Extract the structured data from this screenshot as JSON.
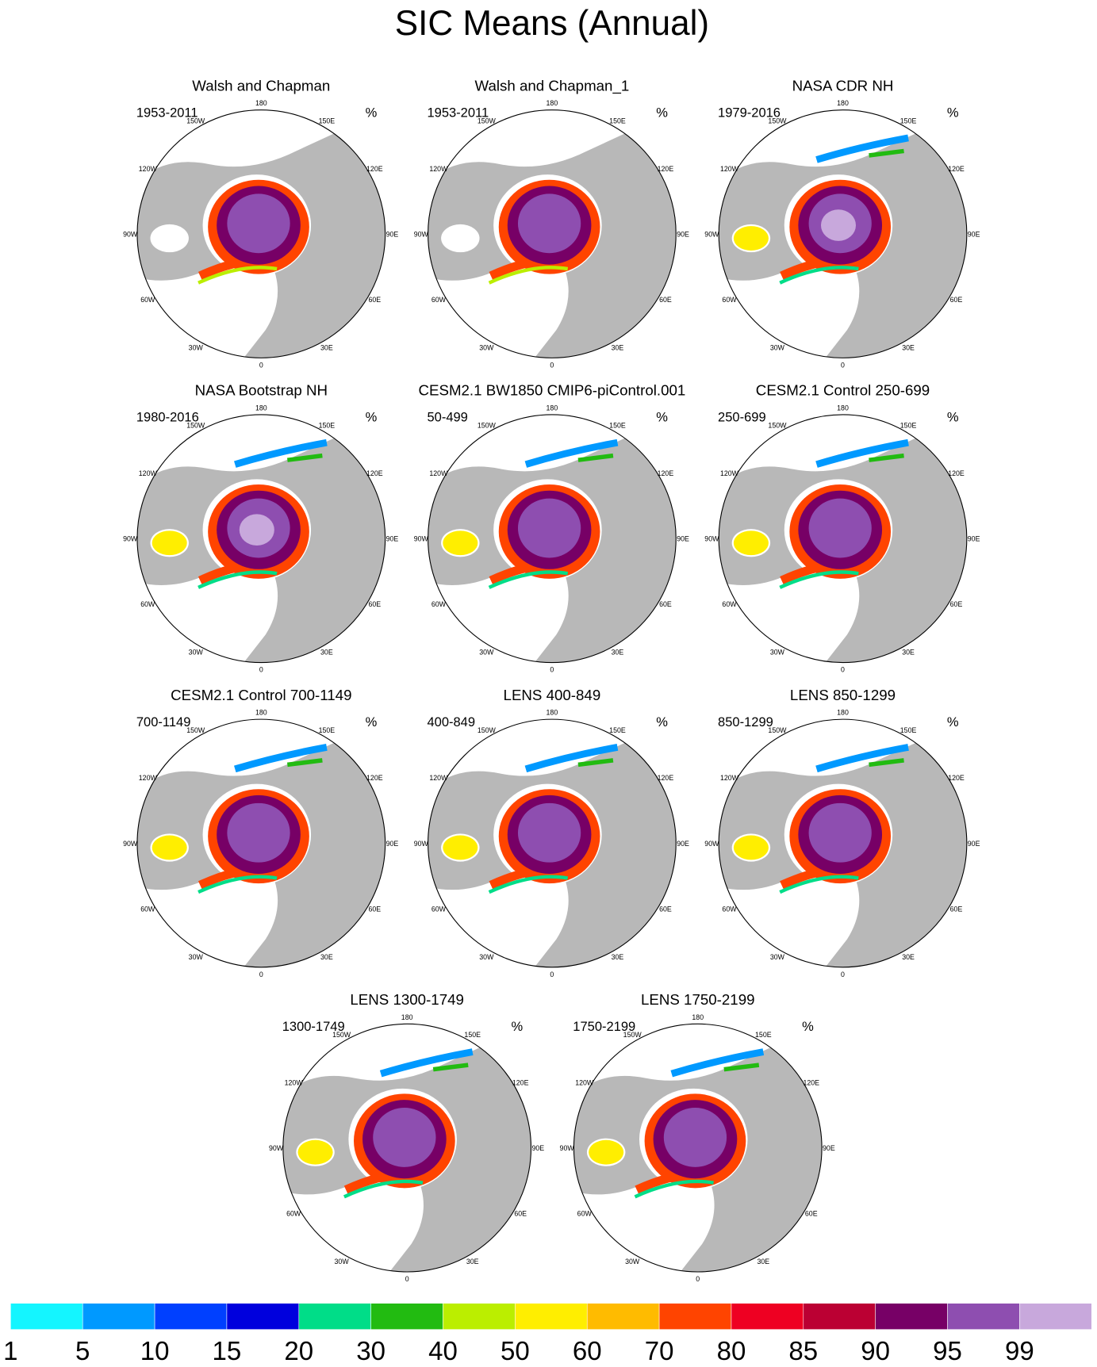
{
  "title": "SIC Means (Annual)",
  "panels": [
    {
      "title": "Walsh and Chapman",
      "period": "1953-2011",
      "units": "%"
    },
    {
      "title": "Walsh and Chapman_1",
      "period": "1953-2011",
      "units": "%"
    },
    {
      "title": "NASA CDR NH",
      "period": "1979-2016",
      "units": "%"
    },
    {
      "title": "NASA Bootstrap NH",
      "period": "1980-2016",
      "units": "%"
    },
    {
      "title": "CESM2.1 BW1850 CMIP6-piControl.001",
      "period": "50-499",
      "units": "%"
    },
    {
      "title": "CESM2.1 Control 250-699",
      "period": "250-699",
      "units": "%"
    },
    {
      "title": "CESM2.1 Control 700-1149",
      "period": "700-1149",
      "units": "%"
    },
    {
      "title": "LENS 400-849",
      "period": "400-849",
      "units": "%"
    },
    {
      "title": "LENS 850-1299",
      "period": "850-1299",
      "units": "%"
    },
    {
      "title": "LENS 1300-1749",
      "period": "1300-1749",
      "units": "%"
    },
    {
      "title": "LENS 1750-2199",
      "period": "1750-2199",
      "units": "%"
    }
  ],
  "lon_labels": [
    "0",
    "30E",
    "60E",
    "90E",
    "120E",
    "150E",
    "180",
    "150W",
    "120W",
    "90W",
    "60W",
    "30W"
  ],
  "colorbar": {
    "levels": [
      1,
      5,
      10,
      15,
      20,
      30,
      40,
      50,
      60,
      70,
      80,
      85,
      90,
      95,
      99
    ],
    "colors": [
      "#14f5ff",
      "#0099ff",
      "#0040ff",
      "#0000dd",
      "#00dd88",
      "#22bb11",
      "#bbee00",
      "#ffee00",
      "#ffbb00",
      "#ff4400",
      "#ee0022",
      "#bb0033",
      "#770066",
      "#8e4eb0",
      "#c8a8dc"
    ]
  }
}
